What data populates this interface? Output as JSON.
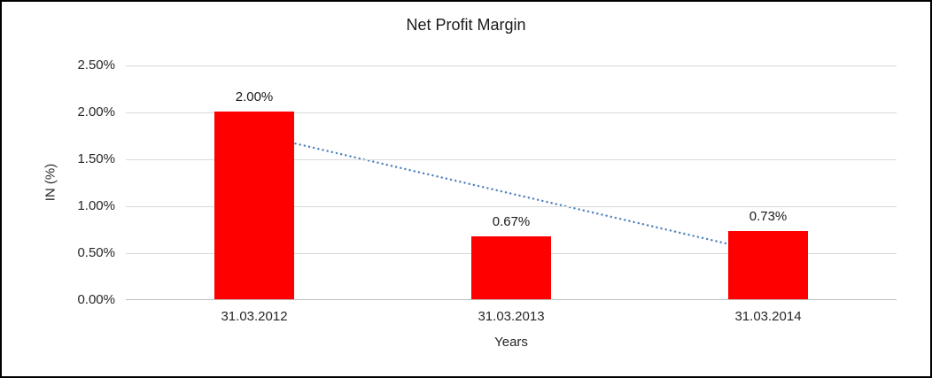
{
  "chart_data": {
    "type": "bar",
    "title": "Net Profit Margin",
    "xlabel": "Years",
    "ylabel": "IN (%)",
    "categories": [
      "31.03.2012",
      "31.03.2013",
      "31.03.2014"
    ],
    "values": [
      2.0,
      0.67,
      0.73
    ],
    "data_labels": [
      "2.00%",
      "0.67%",
      "0.73%"
    ],
    "ylim": [
      0,
      2.5
    ],
    "yticks": [
      {
        "value": 0.0,
        "label": "0.00%"
      },
      {
        "value": 0.5,
        "label": "0.50%"
      },
      {
        "value": 1.0,
        "label": "1.00%"
      },
      {
        "value": 1.5,
        "label": "1.50%"
      },
      {
        "value": 2.0,
        "label": "2.00%"
      },
      {
        "value": 2.5,
        "label": "2.50%"
      }
    ],
    "grid": true,
    "legend": false,
    "bar_color": "#ff0000",
    "trendline": {
      "type": "linear",
      "style": "dotted",
      "color": "#4f81bd",
      "start": {
        "x": "31.03.2012",
        "value": 1.77
      },
      "end": {
        "x": "31.03.2014",
        "value": 0.5
      }
    }
  }
}
